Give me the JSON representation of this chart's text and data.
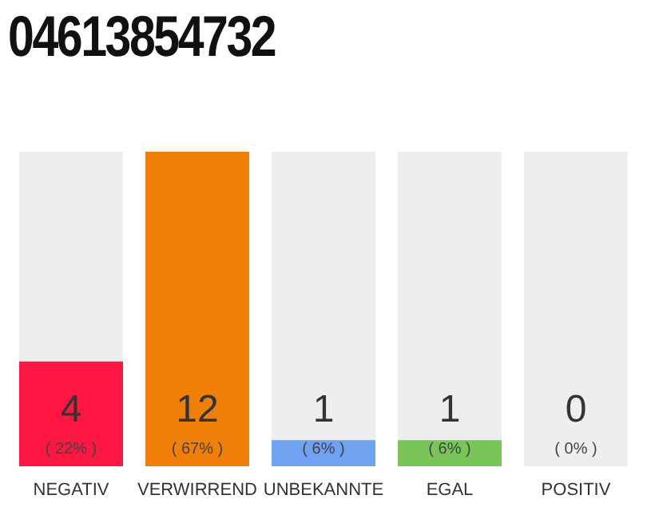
{
  "chart_data": {
    "type": "bar",
    "title": "04613854732",
    "categories": [
      "NEGATIV",
      "VERWIRREND",
      "UNBEKANNTE",
      "EGAL",
      "POSITIV"
    ],
    "values": [
      4,
      12,
      1,
      1,
      0
    ],
    "colors": [
      "#ff1744",
      "#f07f0a",
      "#6fa3ef",
      "#7ac55a",
      "#8a8a8a"
    ],
    "ylim": [
      0,
      12
    ],
    "tick_labels": "x",
    "grid": false,
    "legend": false,
    "data_labels": true,
    "annotations": [
      "( 22% )",
      "( 67% )",
      "( 6% )",
      "( 6% )",
      "( 0% )"
    ]
  }
}
